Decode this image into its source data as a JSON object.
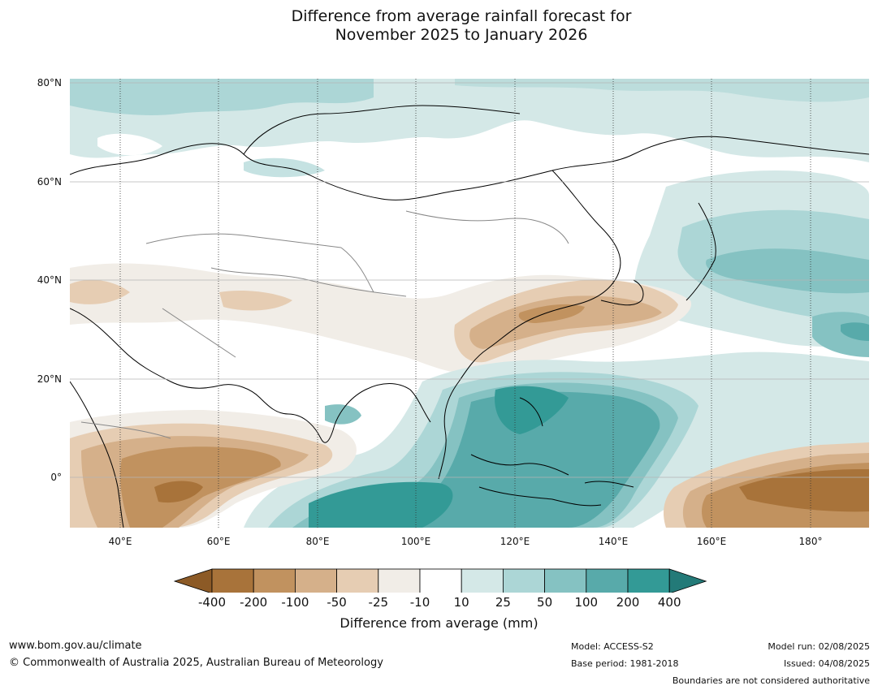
{
  "title": {
    "line1": "Difference from average rainfall forecast for",
    "line2": "November 2025 to January 2026"
  },
  "map": {
    "lat_labels": [
      "80°N",
      "60°N",
      "40°N",
      "20°N",
      "0°"
    ],
    "lon_labels": [
      "40°E",
      "60°E",
      "80°E",
      "100°E",
      "120°E",
      "140°E",
      "160°E",
      "180°"
    ],
    "lat_range": [
      -10,
      80
    ],
    "lon_range": [
      30,
      190
    ]
  },
  "colorbar": {
    "title": "Difference from average (mm)",
    "ticks": [
      "-400",
      "-200",
      "-100",
      "-50",
      "-25",
      "-10",
      "10",
      "25",
      "50",
      "100",
      "200",
      "400"
    ],
    "colors": [
      "#8c5a26",
      "#a8733a",
      "#c1925f",
      "#d5b08a",
      "#e6cdb3",
      "#f1ede7",
      "#ffffff",
      "#d4e8e7",
      "#acd6d6",
      "#85c2c2",
      "#58aaaa",
      "#339a96",
      "#237a78"
    ]
  },
  "footer": {
    "website": "www.bom.gov.au/climate",
    "copyright": "© Commonwealth of Australia 2025, Australian Bureau of Meteorology",
    "model": "Model: ACCESS-S2",
    "base_period": "Base period: 1981-2018",
    "model_run": "Model run: 02/08/2025",
    "issued": "Issued: 04/08/2025",
    "disclaimer": "Boundaries are not considered authoritative"
  }
}
